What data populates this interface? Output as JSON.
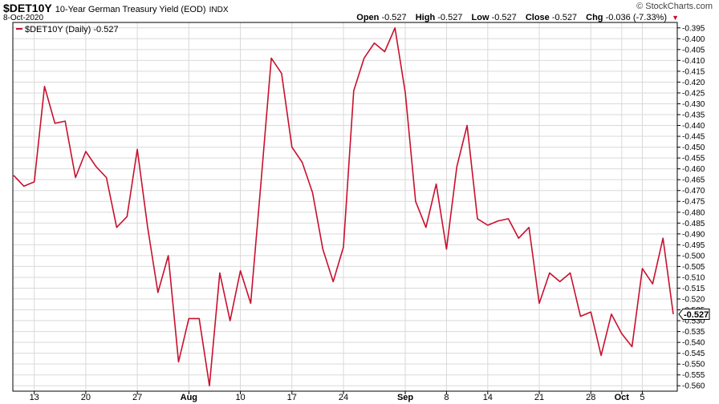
{
  "header": {
    "symbol": "$DET10Y",
    "description": "10-Year German Treasury Yield (EOD)",
    "exchange": "INDX",
    "date": "8-Oct-2020",
    "logo": "© StockCharts.com",
    "open_label": "Open",
    "open_value": "-0.527",
    "high_label": "High",
    "high_value": "-0.527",
    "low_label": "Low",
    "low_value": "-0.527",
    "close_label": "Close",
    "close_value": "-0.527",
    "chg_label": "Chg",
    "chg_value": "-0.036 (-7.33%)"
  },
  "colors": {
    "line": "#c8102e",
    "grid": "#d9d9d9",
    "axis": "#000000"
  },
  "chart_data": {
    "type": "line",
    "legend": "$DET10Y (Daily) -0.527",
    "legend_placement": "top-left",
    "grid": true,
    "last_value_label": "-0.527",
    "ylim": [
      -0.5625,
      -0.3925
    ],
    "yticks": [
      -0.395,
      -0.4,
      -0.405,
      -0.41,
      -0.415,
      -0.42,
      -0.425,
      -0.43,
      -0.435,
      -0.44,
      -0.445,
      -0.45,
      -0.455,
      -0.46,
      -0.465,
      -0.47,
      -0.475,
      -0.48,
      -0.485,
      -0.49,
      -0.495,
      -0.5,
      -0.505,
      -0.51,
      -0.515,
      -0.52,
      -0.525,
      -0.53,
      -0.535,
      -0.54,
      -0.545,
      -0.55,
      -0.555,
      -0.56
    ],
    "ytick_labels": [
      "-0.395",
      "-0.400",
      "-0.405",
      "-0.410",
      "-0.415",
      "-0.420",
      "-0.425",
      "-0.430",
      "-0.435",
      "-0.440",
      "-0.445",
      "-0.450",
      "-0.455",
      "-0.460",
      "-0.465",
      "-0.470",
      "-0.475",
      "-0.480",
      "-0.485",
      "-0.490",
      "-0.495",
      "-0.500",
      "-0.505",
      "-0.510",
      "-0.515",
      "-0.520",
      "-0.525",
      "-0.530",
      "-0.535",
      "-0.540",
      "-0.545",
      "-0.550",
      "-0.555",
      "-0.560"
    ],
    "x_labels": [
      {
        "label": "13",
        "index": 2,
        "bold": false
      },
      {
        "label": "20",
        "index": 7,
        "bold": false
      },
      {
        "label": "27",
        "index": 12,
        "bold": false
      },
      {
        "label": "Aug",
        "index": 17,
        "bold": true
      },
      {
        "label": "10",
        "index": 22,
        "bold": false
      },
      {
        "label": "17",
        "index": 27,
        "bold": false
      },
      {
        "label": "24",
        "index": 32,
        "bold": false
      },
      {
        "label": "Sep",
        "index": 38,
        "bold": true
      },
      {
        "label": "8",
        "index": 42,
        "bold": false
      },
      {
        "label": "14",
        "index": 46,
        "bold": false
      },
      {
        "label": "21",
        "index": 51,
        "bold": false
      },
      {
        "label": "28",
        "index": 56,
        "bold": false
      },
      {
        "label": "Oct",
        "index": 59,
        "bold": true
      },
      {
        "label": "5",
        "index": 61,
        "bold": false
      }
    ],
    "series": [
      {
        "name": "$DET10Y (Daily)",
        "values": [
          -0.463,
          -0.468,
          -0.466,
          -0.422,
          -0.439,
          -0.438,
          -0.464,
          -0.452,
          -0.459,
          -0.464,
          -0.487,
          -0.482,
          -0.451,
          -0.487,
          -0.517,
          -0.5,
          -0.549,
          -0.529,
          -0.529,
          -0.56,
          -0.508,
          -0.53,
          -0.507,
          -0.522,
          -0.466,
          -0.409,
          -0.416,
          -0.45,
          -0.457,
          -0.471,
          -0.497,
          -0.512,
          -0.496,
          -0.424,
          -0.409,
          -0.402,
          -0.406,
          -0.395,
          -0.425,
          -0.475,
          -0.487,
          -0.467,
          -0.497,
          -0.459,
          -0.44,
          -0.483,
          -0.486,
          -0.484,
          -0.483,
          -0.492,
          -0.487,
          -0.522,
          -0.508,
          -0.512,
          -0.508,
          -0.528,
          -0.526,
          -0.546,
          -0.527,
          -0.536,
          -0.542,
          -0.506,
          -0.513,
          -0.492,
          -0.527
        ]
      }
    ]
  }
}
